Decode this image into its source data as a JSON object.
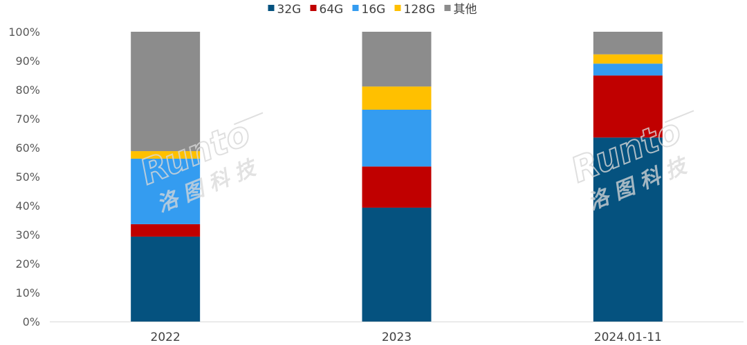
{
  "chart_data": {
    "type": "bar",
    "stacked": true,
    "percent": true,
    "categories": [
      "2022",
      "2023",
      "2024.01-11"
    ],
    "series": [
      {
        "name": "32G",
        "color": "#05527f",
        "values": [
          29.3,
          39.3,
          63.5
        ]
      },
      {
        "name": "64G",
        "color": "#c00000",
        "values": [
          4.3,
          14.2,
          21.4
        ]
      },
      {
        "name": "16G",
        "color": "#349cf0",
        "values": [
          22.6,
          19.6,
          4.1
        ]
      },
      {
        "name": "128G",
        "color": "#ffc000",
        "values": [
          2.6,
          8.0,
          3.2
        ]
      },
      {
        "name": "其他",
        "color": "#8c8c8c",
        "values": [
          41.2,
          18.9,
          7.8
        ]
      }
    ],
    "ylim": [
      0,
      100
    ],
    "yticks": [
      "0%",
      "10%",
      "20%",
      "30%",
      "40%",
      "50%",
      "60%",
      "70%",
      "80%",
      "90%",
      "100%"
    ],
    "grid": false,
    "legend_position": "top-center"
  },
  "watermark": {
    "latin": "Runto",
    "chinese": "洛图科技"
  }
}
